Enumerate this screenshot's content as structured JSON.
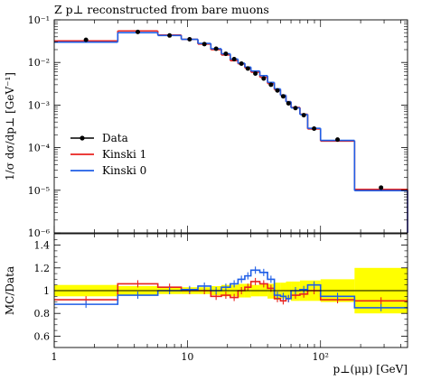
{
  "chart_data": [
    {
      "type": "line",
      "subtype": "histogram",
      "title": "Z p⊥ reconstructed from bare muons",
      "ylabel": "1/σ dσ/dp⊥ [GeV⁻¹]",
      "xlabel": "",
      "xscale": "log",
      "yscale": "log",
      "xlim": [
        1,
        450
      ],
      "ylim": [
        1e-06,
        0.1
      ],
      "ytick_labels": [
        "10⁻¹",
        "10⁻²",
        "10⁻³",
        "10⁻⁴",
        "10⁻⁵",
        "10⁻⁶"
      ],
      "legend_position": "middle-left",
      "bin_edges": [
        1,
        3,
        6,
        9,
        12,
        15,
        18,
        21,
        24,
        27,
        30,
        35,
        40,
        45,
        50,
        55,
        60,
        70,
        80,
        100,
        180,
        450
      ],
      "series": [
        {
          "name": "Data",
          "style": "points",
          "color": "#000000",
          "values": [
            0.034,
            0.052,
            0.043,
            0.035,
            0.027,
            0.021,
            0.016,
            0.012,
            0.0094,
            0.0072,
            0.0055,
            0.0042,
            0.003,
            0.0022,
            0.0016,
            0.0011,
            0.00085,
            0.00058,
            0.00028,
            0.000155,
            1.15e-05
          ]
        },
        {
          "name": "Kinski 1",
          "style": "line",
          "color": "#e8231f",
          "values": [
            0.032,
            0.055,
            0.044,
            0.035,
            0.027,
            0.02,
            0.015,
            0.011,
            0.0093,
            0.0074,
            0.0059,
            0.0045,
            0.0032,
            0.0023,
            0.0017,
            0.0012,
            0.00088,
            0.00061,
            0.000275,
            0.000143,
            1.05e-05
          ]
        },
        {
          "name": "Kinski 0",
          "style": "line",
          "color": "#1f5ee6",
          "values": [
            0.03,
            0.05,
            0.043,
            0.035,
            0.028,
            0.021,
            0.016,
            0.012,
            0.0096,
            0.0078,
            0.0063,
            0.0049,
            0.0034,
            0.0024,
            0.0017,
            0.0012,
            0.00086,
            0.0006,
            0.000285,
            0.000148,
            9.8e-06
          ]
        }
      ]
    },
    {
      "type": "line",
      "subtype": "ratio",
      "ylabel": "MC/Data",
      "xlabel": "p⊥(μμ) [GeV]",
      "xscale": "log",
      "xlim": [
        1,
        450
      ],
      "ylim": [
        0.5,
        1.5
      ],
      "yticks": [
        0.6,
        0.8,
        1,
        1.2,
        1.4
      ],
      "ytick_labels": [
        "0.6",
        "0.8",
        "1",
        "1.2",
        "1.4"
      ],
      "xtick_values": [
        1,
        10,
        100
      ],
      "xtick_labels": [
        "1",
        "10",
        "10²"
      ],
      "bin_edges": [
        1,
        3,
        6,
        9,
        12,
        15,
        18,
        21,
        24,
        27,
        30,
        35,
        40,
        45,
        50,
        55,
        60,
        70,
        80,
        100,
        180,
        450
      ],
      "band": {
        "color": "#ffff00",
        "lower": [
          0.95,
          0.96,
          0.97,
          0.97,
          0.97,
          0.96,
          0.95,
          0.95,
          0.94,
          0.94,
          0.95,
          0.95,
          0.93,
          0.92,
          0.93,
          0.93,
          0.91,
          0.91,
          0.91,
          0.9,
          0.8
        ],
        "upper": [
          1.05,
          1.04,
          1.03,
          1.03,
          1.03,
          1.04,
          1.05,
          1.05,
          1.06,
          1.06,
          1.05,
          1.06,
          1.06,
          1.07,
          1.07,
          1.08,
          1.08,
          1.09,
          1.09,
          1.1,
          1.2
        ]
      },
      "series": [
        {
          "name": "Kinski 1",
          "color": "#e8231f",
          "values": [
            0.92,
            1.06,
            1.03,
            1.0,
            1.0,
            0.95,
            0.96,
            0.94,
            1.0,
            1.03,
            1.08,
            1.06,
            1.02,
            0.93,
            0.91,
            0.93,
            0.96,
            0.97,
            1.0,
            0.92,
            0.91
          ]
        },
        {
          "name": "Kinski 0",
          "color": "#1f5ee6",
          "values": [
            0.88,
            0.96,
            1.0,
            1.01,
            1.04,
            1.0,
            1.03,
            1.06,
            1.1,
            1.13,
            1.18,
            1.16,
            1.1,
            0.96,
            0.95,
            0.93,
            1.0,
            1.01,
            1.05,
            0.95,
            0.85
          ]
        }
      ]
    }
  ]
}
